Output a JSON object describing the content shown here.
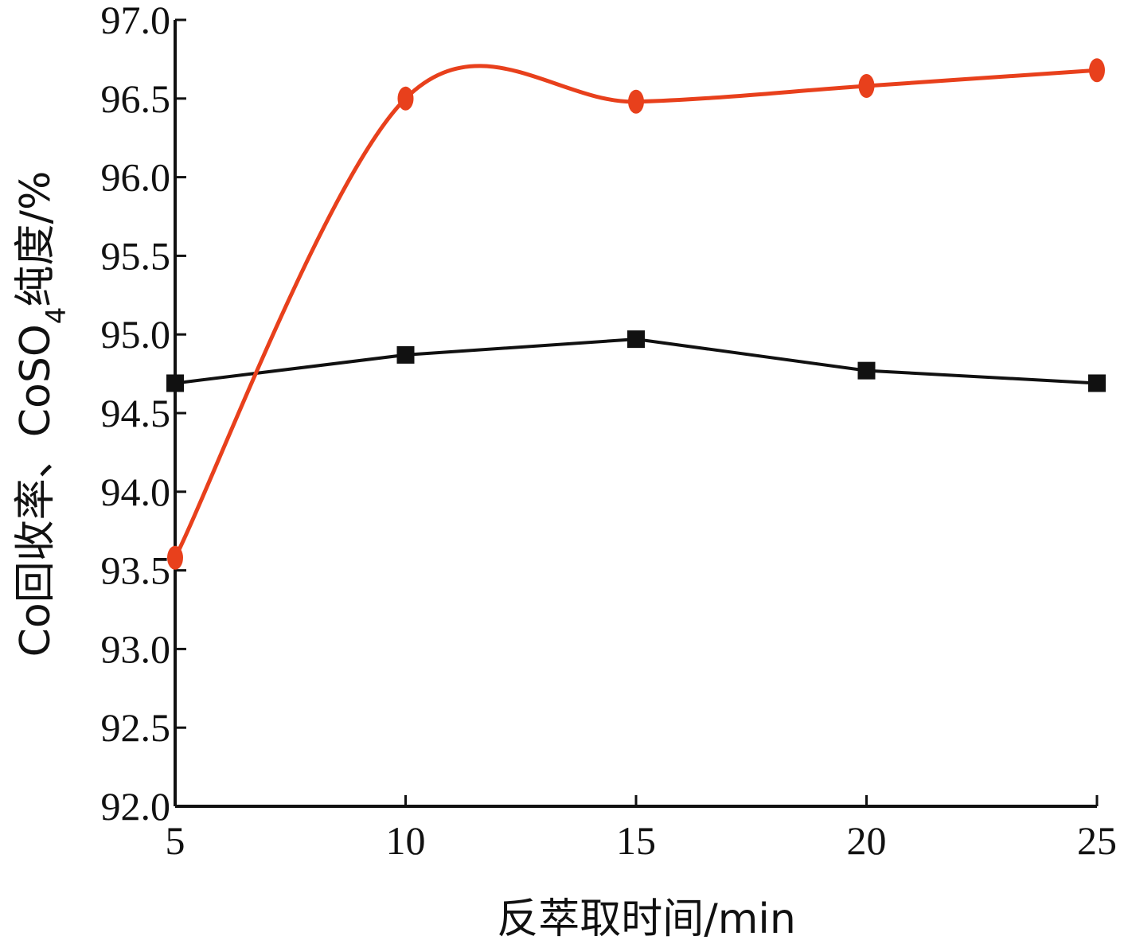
{
  "chart_data": {
    "type": "line",
    "x": [
      5,
      10,
      15,
      20,
      25
    ],
    "xlim": [
      5,
      25
    ],
    "ylim": [
      92.0,
      97.0
    ],
    "x_ticks": [
      "5",
      "10",
      "15",
      "20",
      "25"
    ],
    "y_ticks": [
      "92.0",
      "92.5",
      "93.0",
      "93.5",
      "94.0",
      "94.5",
      "95.0",
      "95.5",
      "96.0",
      "96.5",
      "97.0"
    ],
    "xlabel": "反萃取时间/min",
    "ylabel_main": "Co回收率、CoSO",
    "ylabel_sub": "4",
    "ylabel_tail": "纯度/%",
    "grid": false,
    "legend": "none",
    "series": [
      {
        "values": [
          94.69,
          94.87,
          94.97,
          94.77,
          94.69
        ],
        "color": "#111111",
        "marker": "square",
        "smooth": false
      },
      {
        "values": [
          93.58,
          96.5,
          96.48,
          96.58,
          96.68
        ],
        "color": "#e8401c",
        "marker": "circle",
        "smooth": true
      }
    ]
  }
}
